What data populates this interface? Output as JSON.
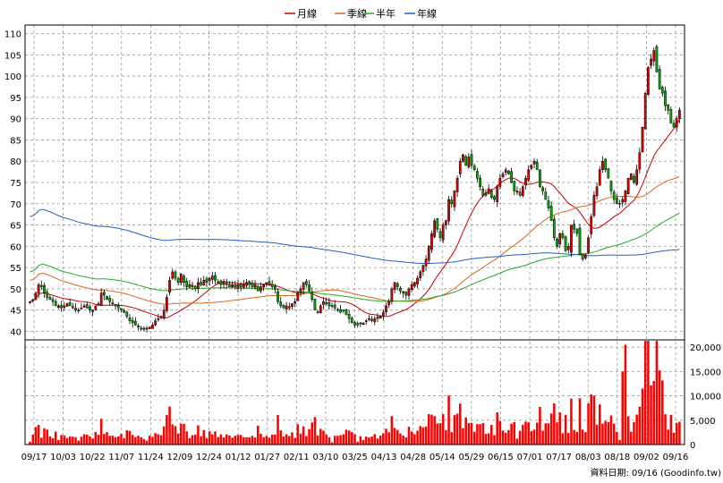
{
  "chart_data": {
    "type": "candlestick",
    "legend": [
      {
        "label": "月線",
        "color": "#cc0000"
      },
      {
        "label": "季線",
        "color": "#e0641e"
      },
      {
        "label": "半年",
        "color": "#22aa22"
      },
      {
        "label": "年線",
        "color": "#1f5fc8"
      }
    ],
    "price_axis": {
      "ylim": [
        38,
        112
      ],
      "ticks": [
        40,
        45,
        50,
        55,
        60,
        65,
        70,
        75,
        80,
        85,
        90,
        95,
        100,
        105,
        110
      ]
    },
    "volume_axis": {
      "ylim": [
        0,
        21500
      ],
      "ticks": [
        0,
        5000,
        10000,
        15000,
        20000
      ],
      "tick_labels": [
        "0",
        "5,000",
        "10,000",
        "15,000",
        "20,000"
      ]
    },
    "x_labels": [
      "09/17",
      "10/03",
      "10/22",
      "11/07",
      "11/24",
      "12/09",
      "12/24",
      "01/12",
      "01/27",
      "02/11",
      "03/10",
      "03/25",
      "04/13",
      "04/28",
      "05/14",
      "05/29",
      "06/15",
      "07/01",
      "07/17",
      "08/03",
      "08/18",
      "09/02",
      "09/16"
    ],
    "footer": "資料日期: 09/16  (Goodinfo.tw)",
    "close": [
      47,
      47.5,
      49,
      51,
      50.5,
      49,
      48,
      47.5,
      47,
      46,
      46,
      45.5,
      46,
      46.5,
      46,
      45.5,
      45,
      45,
      45.5,
      46,
      45.5,
      45,
      45,
      46,
      46.5,
      49,
      48.5,
      47.5,
      47,
      46.5,
      46,
      45.5,
      45,
      44.5,
      43.5,
      42.5,
      42,
      41.5,
      41,
      40.5,
      40.5,
      40.5,
      41,
      41.5,
      42.5,
      43,
      43.5,
      45,
      48,
      52,
      54,
      52.5,
      51.5,
      53.5,
      51.5,
      50.5,
      51,
      50.5,
      50,
      51.5,
      51,
      52,
      51.5,
      52.5,
      53,
      52,
      51.5,
      51,
      51.5,
      51,
      50.5,
      51,
      50.5,
      51,
      50.5,
      51,
      51.5,
      51,
      50.5,
      51,
      49.5,
      50.5,
      51,
      51.5,
      51,
      50.5,
      50,
      47,
      46,
      45.5,
      46,
      45.5,
      46.5,
      47,
      49,
      50,
      51.5,
      51,
      49.5,
      47.5,
      45,
      44.5,
      46,
      47,
      46.5,
      46,
      46,
      45.5,
      45,
      44.5,
      45,
      44,
      43,
      42,
      41.5,
      41.5,
      42,
      42,
      42.5,
      43,
      42.5,
      43,
      43,
      43.5,
      44.5,
      46,
      47,
      50,
      51.5,
      50.5,
      49.5,
      49,
      48.5,
      50,
      51,
      51.5,
      52.5,
      54,
      55.5,
      57,
      60,
      63,
      66,
      64,
      62,
      65,
      66,
      71,
      70,
      73,
      76,
      80,
      81.5,
      79,
      81,
      79,
      78,
      76,
      74,
      72,
      72.5,
      73.5,
      71.5,
      71,
      74,
      76,
      77,
      78,
      77,
      75,
      73,
      73,
      72,
      74,
      76,
      78,
      79,
      80,
      78,
      74,
      73,
      71,
      69,
      66,
      62,
      60,
      63,
      62,
      59,
      60,
      65,
      64,
      63,
      58,
      57,
      58,
      62,
      67,
      72,
      74,
      78,
      80,
      78,
      76,
      73,
      71,
      70,
      70,
      71,
      73,
      76,
      77,
      75,
      78,
      82,
      88,
      96,
      102,
      104,
      106,
      101,
      97,
      96,
      93,
      92,
      89,
      88,
      90,
      92
    ]
  }
}
